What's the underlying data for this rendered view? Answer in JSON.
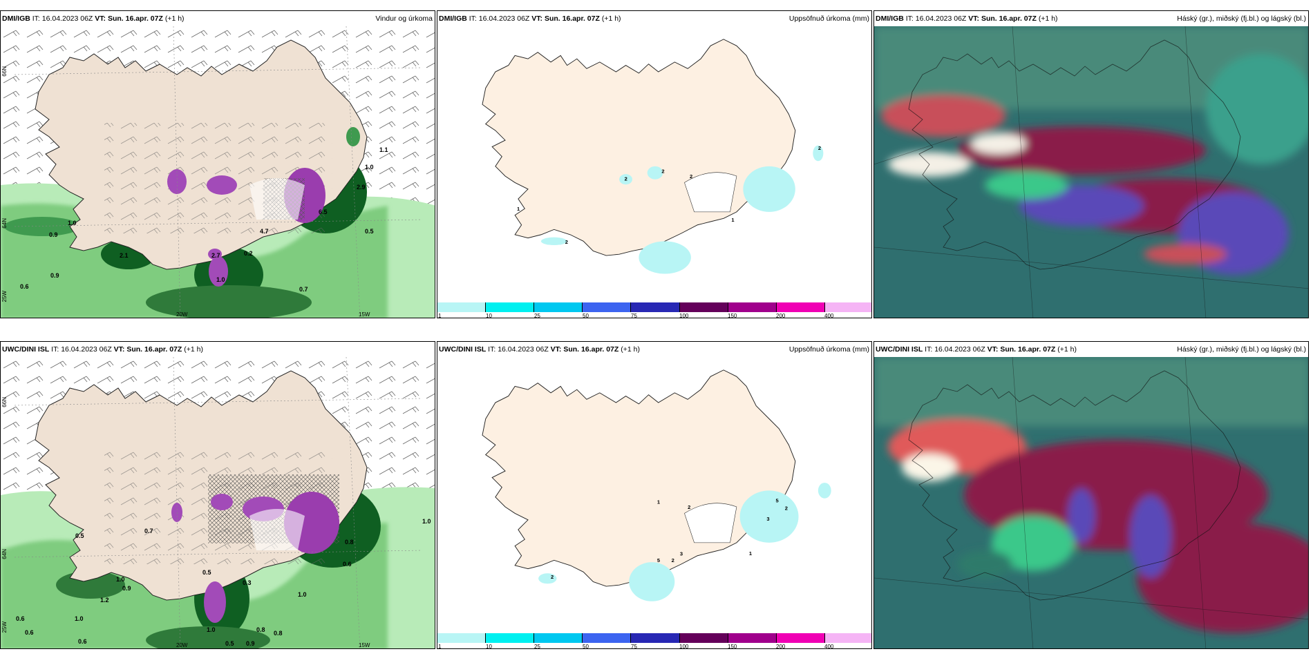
{
  "rows": [
    {
      "source": "DMI/IGB",
      "it_label": "IT:",
      "it_value": "16.04.2023 06Z",
      "vt_label": "VT:",
      "vt_value": "Sun. 16.apr. 07Z",
      "lead": "(+1 h)"
    },
    {
      "source": "UWC/DINI ISL",
      "it_label": "IT:",
      "it_value": "16.04.2023 06Z",
      "vt_label": "VT:",
      "vt_value": "Sun. 16.apr. 07Z",
      "lead": "(+1 h)"
    }
  ],
  "panel_titles": {
    "wind": "Vindur og úrkoma",
    "precip": "Uppsöfnuð úrkoma (mm)",
    "cloud": "Háský (gr.), miðský (fj.bl.) og lágský (bl.)"
  },
  "axis_labels": {
    "lat_66": "66N",
    "lat_64": "64N",
    "lat_25": "25W",
    "lon_20": "20W",
    "lon_15": "15W"
  },
  "colorbar": {
    "labels": [
      "1",
      "10",
      "25",
      "50",
      "75",
      "100",
      "150",
      "200",
      "400"
    ],
    "colors": [
      "#b8f5f5",
      "#00f0f0",
      "#00c8f0",
      "#3c64f0",
      "#2828b4",
      "#64005a",
      "#a0008c",
      "#f000b4",
      "#f5b4f5"
    ]
  },
  "wind_labels_top": [
    "1.0",
    "0.9",
    "2.1",
    "0.6",
    "0.9",
    "2.7",
    "0.2",
    "0.7",
    "1.0",
    "0.5",
    "4.7",
    "6.5",
    "1.0",
    "1.1",
    "2.9"
  ],
  "wind_labels_bottom": [
    "0.5",
    "0.7",
    "1.0",
    "0.9",
    "0.6",
    "1.0",
    "1.2",
    "0.6",
    "0.6",
    "1.0",
    "0.5",
    "0.9",
    "0.3",
    "0.5",
    "0.8",
    "0.8",
    "0.6",
    "1.0",
    "0.8",
    "1.0"
  ],
  "precip_labels_top": [
    "2",
    "2",
    "2",
    "1",
    "2",
    "2",
    "1"
  ],
  "precip_labels_bottom": [
    "1",
    "2",
    "5",
    "2",
    "3",
    "3",
    "1",
    "2",
    "5",
    "2"
  ]
}
